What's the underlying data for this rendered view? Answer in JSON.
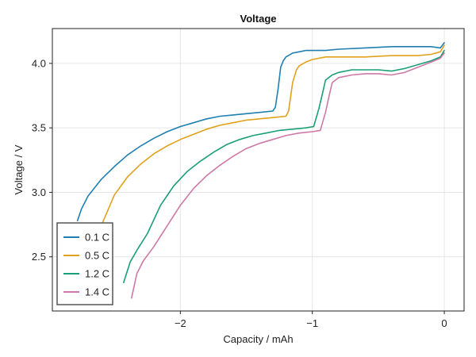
{
  "chart_data": {
    "type": "line",
    "title": "Voltage",
    "xlabel": "Capacity / mAh",
    "ylabel": "Voltage / V",
    "xlim": [
      -2.97,
      0.15
    ],
    "ylim": [
      2.08,
      4.27
    ],
    "xticks": [
      -2,
      -1,
      0
    ],
    "xtick_labels": [
      "−2",
      "−1",
      "0"
    ],
    "yticks": [
      2.5,
      3.0,
      3.5,
      4.0
    ],
    "ytick_labels": [
      "2.5",
      "3.0",
      "3.5",
      "4.0"
    ],
    "grid": true,
    "legend_position": "bottom-left",
    "series": [
      {
        "name": "0.1 C",
        "color": "#1f7fb0",
        "x": [
          -2.78,
          -2.75,
          -2.7,
          -2.6,
          -2.5,
          -2.4,
          -2.3,
          -2.2,
          -2.1,
          -2.0,
          -1.9,
          -1.8,
          -1.7,
          -1.6,
          -1.5,
          -1.4,
          -1.3,
          -1.28,
          -1.26,
          -1.24,
          -1.22,
          -1.2,
          -1.15,
          -1.1,
          -1.05,
          -1.0,
          -0.9,
          -0.8,
          -0.6,
          -0.4,
          -0.2,
          -0.1,
          -0.03,
          0.0
        ],
        "y": [
          2.78,
          2.87,
          2.97,
          3.1,
          3.2,
          3.29,
          3.36,
          3.42,
          3.47,
          3.51,
          3.54,
          3.57,
          3.59,
          3.6,
          3.61,
          3.62,
          3.63,
          3.66,
          3.8,
          3.97,
          4.02,
          4.05,
          4.08,
          4.09,
          4.1,
          4.1,
          4.1,
          4.11,
          4.12,
          4.13,
          4.13,
          4.13,
          4.12,
          4.16
        ]
      },
      {
        "name": "0.5 C",
        "color": "#e0a11b",
        "x": [
          -2.6,
          -2.55,
          -2.5,
          -2.4,
          -2.3,
          -2.2,
          -2.1,
          -2.0,
          -1.9,
          -1.8,
          -1.7,
          -1.6,
          -1.5,
          -1.4,
          -1.3,
          -1.2,
          -1.18,
          -1.15,
          -1.12,
          -1.1,
          -1.05,
          -1.0,
          -0.95,
          -0.9,
          -0.8,
          -0.6,
          -0.4,
          -0.2,
          -0.1,
          -0.03,
          0.0
        ],
        "y": [
          2.74,
          2.86,
          2.98,
          3.12,
          3.22,
          3.3,
          3.36,
          3.41,
          3.45,
          3.49,
          3.52,
          3.54,
          3.56,
          3.57,
          3.58,
          3.59,
          3.63,
          3.85,
          3.95,
          3.98,
          4.01,
          4.03,
          4.04,
          4.05,
          4.05,
          4.05,
          4.06,
          4.06,
          4.07,
          4.09,
          4.14
        ]
      },
      {
        "name": "1.2 C",
        "color": "#1a9e77",
        "x": [
          -2.43,
          -2.38,
          -2.33,
          -2.25,
          -2.15,
          -2.05,
          -1.95,
          -1.85,
          -1.75,
          -1.65,
          -1.55,
          -1.45,
          -1.35,
          -1.25,
          -1.15,
          -1.05,
          -0.99,
          -0.95,
          -0.92,
          -0.9,
          -0.85,
          -0.8,
          -0.7,
          -0.6,
          -0.5,
          -0.4,
          -0.3,
          -0.2,
          -0.1,
          -0.03,
          0.0
        ],
        "y": [
          2.3,
          2.46,
          2.55,
          2.68,
          2.9,
          3.05,
          3.16,
          3.24,
          3.31,
          3.37,
          3.41,
          3.44,
          3.46,
          3.48,
          3.49,
          3.5,
          3.51,
          3.65,
          3.78,
          3.87,
          3.91,
          3.93,
          3.95,
          3.95,
          3.95,
          3.94,
          3.96,
          3.99,
          4.02,
          4.05,
          4.1
        ]
      },
      {
        "name": "1.4 C",
        "color": "#cc79a7",
        "x": [
          -2.37,
          -2.33,
          -2.28,
          -2.2,
          -2.1,
          -2.0,
          -1.9,
          -1.8,
          -1.7,
          -1.6,
          -1.5,
          -1.4,
          -1.3,
          -1.2,
          -1.1,
          -1.0,
          -0.94,
          -0.9,
          -0.87,
          -0.85,
          -0.8,
          -0.7,
          -0.6,
          -0.5,
          -0.4,
          -0.3,
          -0.2,
          -0.1,
          -0.03,
          0.0
        ],
        "y": [
          2.18,
          2.37,
          2.47,
          2.58,
          2.74,
          2.9,
          3.03,
          3.13,
          3.21,
          3.28,
          3.34,
          3.38,
          3.41,
          3.44,
          3.46,
          3.47,
          3.48,
          3.62,
          3.76,
          3.85,
          3.89,
          3.91,
          3.92,
          3.92,
          3.91,
          3.93,
          3.97,
          4.01,
          4.04,
          4.08
        ]
      }
    ]
  }
}
